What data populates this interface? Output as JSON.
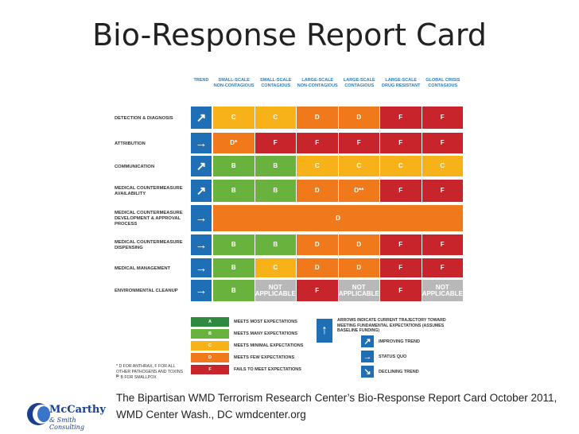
{
  "slide": {
    "title": "Bio-Response Report Card"
  },
  "card": {
    "columns": [
      "TREND",
      "SMALL-SCALE NON-CONTAGIOUS",
      "SMALL-SCALE CONTAGIOUS",
      "LARGE-SCALE NON-CONTAGIOUS",
      "LARGE-SCALE CONTAGIOUS",
      "LARGE-SCALE DRUG RESISTANT",
      "GLOBAL CRISIS CONTAGIOUS"
    ],
    "rows": [
      {
        "label": "DETECTION & DIAGNOSIS",
        "trend": "↗",
        "grades": [
          "C",
          "C",
          "D",
          "D",
          "F",
          "F"
        ]
      },
      {
        "label": "ATTRIBUTION",
        "trend": "→",
        "grades": [
          "D*",
          "F",
          "F",
          "F",
          "F",
          "F"
        ]
      },
      {
        "label": "COMMUNICATION",
        "trend": "↗",
        "grades": [
          "B",
          "B",
          "C",
          "C",
          "C",
          "C"
        ]
      },
      {
        "label": "MEDICAL COUNTERMEASURE AVAILABILITY",
        "trend": "↗",
        "grades": [
          "B",
          "B",
          "D",
          "D**",
          "F",
          "F"
        ]
      },
      {
        "label": "MEDICAL COUNTERMEASURE DEVELOPMENT & APPROVAL PROCESS",
        "trend": "→",
        "merged": "D"
      },
      {
        "label": "MEDICAL COUNTERMEASURE DISPENSING",
        "trend": "→",
        "grades": [
          "B",
          "B",
          "D",
          "D",
          "F",
          "F"
        ]
      },
      {
        "label": "MEDICAL MANAGEMENT",
        "trend": "→",
        "grades": [
          "B",
          "C",
          "D",
          "D",
          "F",
          "F"
        ]
      },
      {
        "label": "ENVIRONMENTAL CLEANUP",
        "trend": "→",
        "grades": [
          "B",
          "NOT APPLICABLE",
          "F",
          "NOT APPLICABLE",
          "F",
          "NOT APPLICABLE"
        ]
      }
    ],
    "colors": {
      "A": "#2d8a3e",
      "B": "#6ab23e",
      "C": "#f7b21a",
      "D": "#f07a1b",
      "F": "#c8242b",
      "NA": "#b8b8b8",
      "trend": "#1e6fb5"
    },
    "legend": [
      {
        "grade": "A",
        "text": "MEETS MOST EXPECTATIONS"
      },
      {
        "grade": "B",
        "text": "MEETS MANY EXPECTATIONS"
      },
      {
        "grade": "C",
        "text": "MEETS MINIMAL EXPECTATIONS"
      },
      {
        "grade": "D",
        "text": "MEETS FEW EXPECTATIONS"
      },
      {
        "grade": "F",
        "text": "FAILS TO MEET EXPECTATIONS"
      }
    ],
    "footnote1": "* D FOR ANTHRAX, F FOR ALL OTHER PATHOGENS AND TOXINS F",
    "footnote2": "** B FOR SMALLPOX",
    "arrow_note": "ARROWS INDICATE CURRENT TRAJECTORY TOWARD MEETING FUNDAMENTAL EXPECTATIONS (ASSUMES BASELINE FUNDING)",
    "trend_legend": [
      {
        "arrow": "↗",
        "text": "IMPROVING TREND"
      },
      {
        "arrow": "→",
        "text": "STATUS QUO"
      },
      {
        "arrow": "↘",
        "text": "DECLINING TREND"
      }
    ]
  },
  "caption": "The Bipartisan WMD Terrorism Research Center’s Bio-Response Report Card October 2011, WMD Center Wash., DC  wmdcenter.org",
  "logo": {
    "line1": "McCarthy",
    "line2": "& Smith Consulting"
  }
}
